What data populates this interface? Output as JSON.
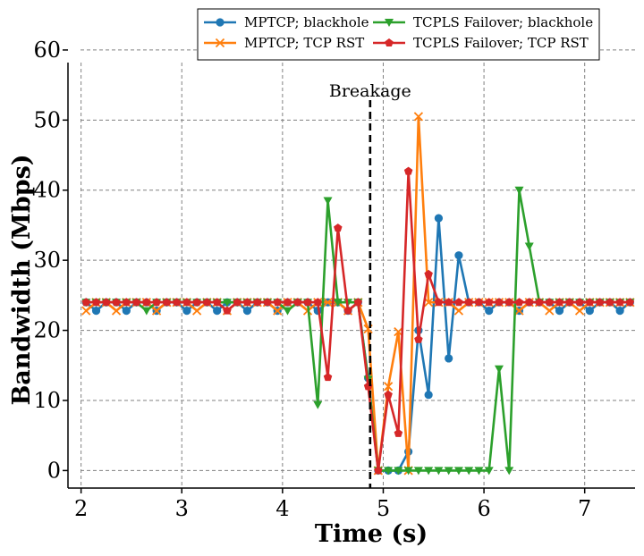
{
  "chart_data": {
    "type": "line",
    "xlabel": "Time (s)",
    "ylabel": "Bandwidth (Mbps)",
    "xlim": [
      1.87,
      7.5
    ],
    "ylim": [
      -2.5,
      60.5
    ],
    "xticks": [
      "2",
      "3",
      "4",
      "5",
      "6",
      "7"
    ],
    "yticks": [
      "0",
      "10",
      "20",
      "30",
      "40",
      "50",
      "60"
    ],
    "grid": true,
    "legend_position": "top",
    "annotation": {
      "text": "Breakage",
      "x": 4.87
    },
    "series": [
      {
        "name": "MPTCP; blackhole",
        "color": "#1f77b4",
        "marker": "circle",
        "x": [
          2.05,
          2.15,
          2.25,
          2.35,
          2.45,
          2.55,
          2.65,
          2.75,
          2.85,
          2.95,
          3.05,
          3.15,
          3.25,
          3.35,
          3.45,
          3.55,
          3.65,
          3.75,
          3.85,
          3.95,
          4.05,
          4.15,
          4.25,
          4.35,
          4.45,
          4.55,
          4.65,
          4.75,
          4.85,
          4.95,
          5.05,
          5.15,
          5.25,
          5.35,
          5.45,
          5.55,
          5.65,
          5.75,
          5.85,
          5.95,
          6.05,
          6.15,
          6.25,
          6.35,
          6.45,
          6.55,
          6.65,
          6.75,
          6.85,
          6.95,
          7.05,
          7.15,
          7.25,
          7.35,
          7.45
        ],
        "y": [
          24,
          22.8,
          24,
          24,
          22.8,
          24,
          24,
          22.8,
          24,
          24,
          22.8,
          24,
          24,
          22.8,
          24,
          24,
          22.8,
          24,
          24,
          22.8,
          24,
          24,
          24,
          22.8,
          24,
          24,
          22.8,
          24,
          13.2,
          0,
          0,
          0,
          2.7,
          20,
          10.8,
          36,
          16,
          30.7,
          24,
          24,
          22.8,
          24,
          24,
          22.8,
          24,
          24,
          24,
          22.8,
          24,
          24,
          22.8,
          24,
          24,
          22.8,
          24
        ]
      },
      {
        "name": "MPTCP; TCP RST",
        "color": "#ff7f0e",
        "marker": "x",
        "x": [
          2.05,
          2.15,
          2.25,
          2.35,
          2.45,
          2.55,
          2.65,
          2.75,
          2.85,
          2.95,
          3.05,
          3.15,
          3.25,
          3.35,
          3.45,
          3.55,
          3.65,
          3.75,
          3.85,
          3.95,
          4.05,
          4.15,
          4.25,
          4.35,
          4.45,
          4.55,
          4.65,
          4.75,
          4.85,
          4.95,
          5.05,
          5.15,
          5.25,
          5.35,
          5.45,
          5.55,
          5.65,
          5.75,
          5.85,
          5.95,
          6.05,
          6.15,
          6.25,
          6.35,
          6.45,
          6.55,
          6.65,
          6.75,
          6.85,
          6.95,
          7.05,
          7.15,
          7.25,
          7.35,
          7.45
        ],
        "y": [
          22.8,
          24,
          24,
          22.8,
          24,
          24,
          24,
          22.8,
          24,
          24,
          24,
          22.8,
          24,
          24,
          22.8,
          24,
          24,
          24,
          24,
          22.8,
          24,
          24,
          22.8,
          24,
          24,
          24,
          22.8,
          24,
          20.2,
          0,
          12,
          19.8,
          0,
          50.5,
          24,
          24,
          24,
          22.8,
          24,
          24,
          24,
          24,
          24,
          22.8,
          24,
          24,
          22.8,
          24,
          24,
          22.8,
          24,
          24,
          24,
          24,
          24
        ]
      },
      {
        "name": "TCPLS Failover; blackhole",
        "color": "#2ca02c",
        "marker": "triangle-down",
        "x": [
          2.05,
          2.15,
          2.25,
          2.35,
          2.45,
          2.55,
          2.65,
          2.75,
          2.85,
          2.95,
          3.05,
          3.15,
          3.25,
          3.35,
          3.45,
          3.55,
          3.65,
          3.75,
          3.85,
          3.95,
          4.05,
          4.15,
          4.25,
          4.35,
          4.45,
          4.55,
          4.65,
          4.75,
          4.85,
          4.95,
          5.05,
          5.15,
          5.25,
          5.35,
          5.45,
          5.55,
          5.65,
          5.75,
          5.85,
          5.95,
          6.05,
          6.15,
          6.25,
          6.35,
          6.45,
          6.55,
          6.65,
          6.75,
          6.85,
          6.95,
          7.05,
          7.15,
          7.25,
          7.35,
          7.45
        ],
        "y": [
          24,
          24,
          24,
          24,
          24,
          24,
          22.8,
          24,
          24,
          24,
          24,
          24,
          24,
          24,
          24,
          24,
          24,
          24,
          24,
          24,
          22.8,
          24,
          24,
          9.4,
          38.5,
          24,
          24,
          24,
          13,
          0,
          0,
          0,
          0,
          0,
          0,
          0,
          0,
          0,
          0,
          0,
          0,
          14.5,
          0,
          40,
          32,
          24,
          24,
          24,
          24,
          24,
          24,
          24,
          24,
          24,
          24
        ]
      },
      {
        "name": "TCPLS Failover; TCP RST",
        "color": "#d62728",
        "marker": "pentagon",
        "x": [
          2.05,
          2.15,
          2.25,
          2.35,
          2.45,
          2.55,
          2.65,
          2.75,
          2.85,
          2.95,
          3.05,
          3.15,
          3.25,
          3.35,
          3.45,
          3.55,
          3.65,
          3.75,
          3.85,
          3.95,
          4.05,
          4.15,
          4.25,
          4.35,
          4.45,
          4.55,
          4.65,
          4.75,
          4.85,
          4.95,
          5.05,
          5.15,
          5.25,
          5.35,
          5.45,
          5.55,
          5.65,
          5.75,
          5.85,
          5.95,
          6.05,
          6.15,
          6.25,
          6.35,
          6.45,
          6.55,
          6.65,
          6.75,
          6.85,
          6.95,
          7.05,
          7.15,
          7.25,
          7.35,
          7.45
        ],
        "y": [
          24,
          24,
          24,
          24,
          24,
          24,
          24,
          24,
          24,
          24,
          24,
          24,
          24,
          24,
          22.8,
          24,
          24,
          24,
          24,
          24,
          24,
          24,
          24,
          24,
          13.3,
          34.6,
          22.8,
          24,
          12,
          0,
          10.8,
          5.3,
          42.7,
          18.7,
          28,
          24,
          24,
          24,
          24,
          24,
          24,
          24,
          24,
          24,
          24,
          24,
          24,
          24,
          24,
          24,
          24,
          24,
          24,
          24,
          24
        ]
      }
    ]
  }
}
